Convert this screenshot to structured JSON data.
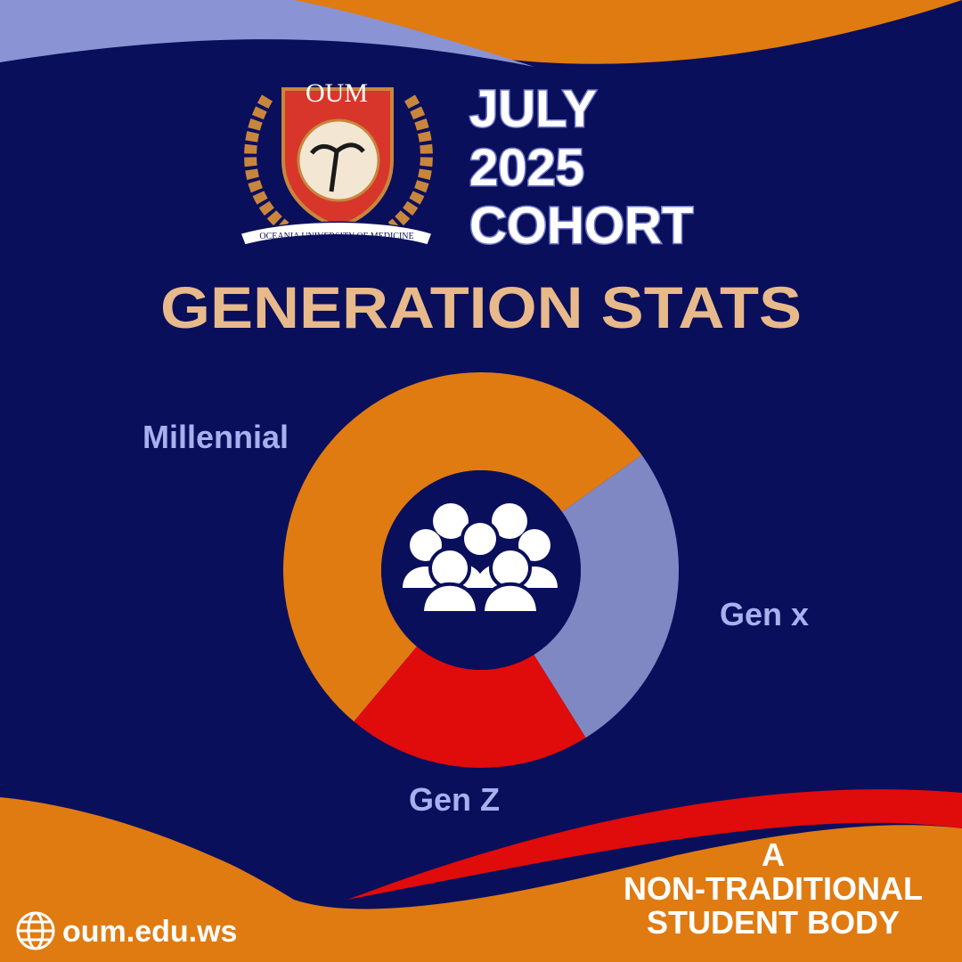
{
  "header": {
    "lines": [
      "JULY",
      "2025",
      "COHORT"
    ]
  },
  "logo": {
    "acronym": "OUM",
    "name": "OCEANIA UNIVERSITY OF MEDICINE"
  },
  "chart_data": {
    "type": "donut",
    "title": "GENERATION STATS",
    "categories": [
      "Millennial",
      "Gen x",
      "Gen Z"
    ],
    "values": [
      54,
      26,
      20
    ],
    "colors": [
      "#e07b12",
      "#8088c4",
      "#e00b0b"
    ]
  },
  "footer": {
    "tagline": [
      "A",
      "NON-TRADITIONAL",
      "STUDENT BODY"
    ],
    "website": "oum.edu.ws"
  }
}
